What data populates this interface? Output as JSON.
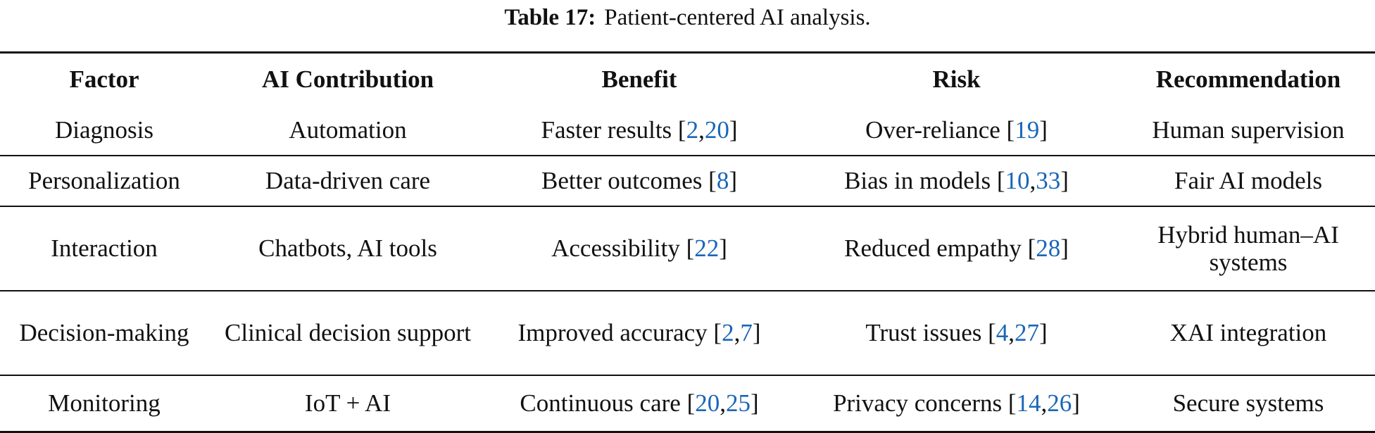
{
  "caption": {
    "label": "Table 17:",
    "text": "Patient-centered AI analysis."
  },
  "colors": {
    "citation": "#1a66b8",
    "text": "#111111"
  },
  "table": {
    "headers": [
      "Factor",
      "AI Contribution",
      "Benefit",
      "Risk",
      "Recommendation"
    ],
    "rows": [
      {
        "factor": "Diagnosis",
        "contribution": "Automation",
        "benefit": "Faster results",
        "benefit_cites": [
          "2",
          "20"
        ],
        "risk": "Over-reliance",
        "risk_cites": [
          "19"
        ],
        "recommendation": "Human supervision"
      },
      {
        "factor": "Personalization",
        "contribution": "Data-driven care",
        "benefit": "Better outcomes",
        "benefit_cites": [
          "8"
        ],
        "risk": "Bias in models",
        "risk_cites": [
          "10",
          "33"
        ],
        "recommendation": "Fair AI models"
      },
      {
        "factor": "Interaction",
        "contribution": "Chatbots, AI tools",
        "benefit": "Accessibility",
        "benefit_cites": [
          "22"
        ],
        "risk": "Reduced empathy",
        "risk_cites": [
          "28"
        ],
        "recommendation": "Hybrid human–AI systems"
      },
      {
        "factor": "Decision-making",
        "contribution": "Clinical decision support",
        "benefit": "Improved accuracy",
        "benefit_cites": [
          "2",
          "7"
        ],
        "risk": "Trust issues",
        "risk_cites": [
          "4",
          "27"
        ],
        "recommendation": "XAI integration"
      },
      {
        "factor": "Monitoring",
        "contribution": "IoT + AI",
        "benefit": "Continuous care",
        "benefit_cites": [
          "20",
          "25"
        ],
        "risk": "Privacy concerns",
        "risk_cites": [
          "14",
          "26"
        ],
        "recommendation": "Secure systems"
      }
    ]
  }
}
